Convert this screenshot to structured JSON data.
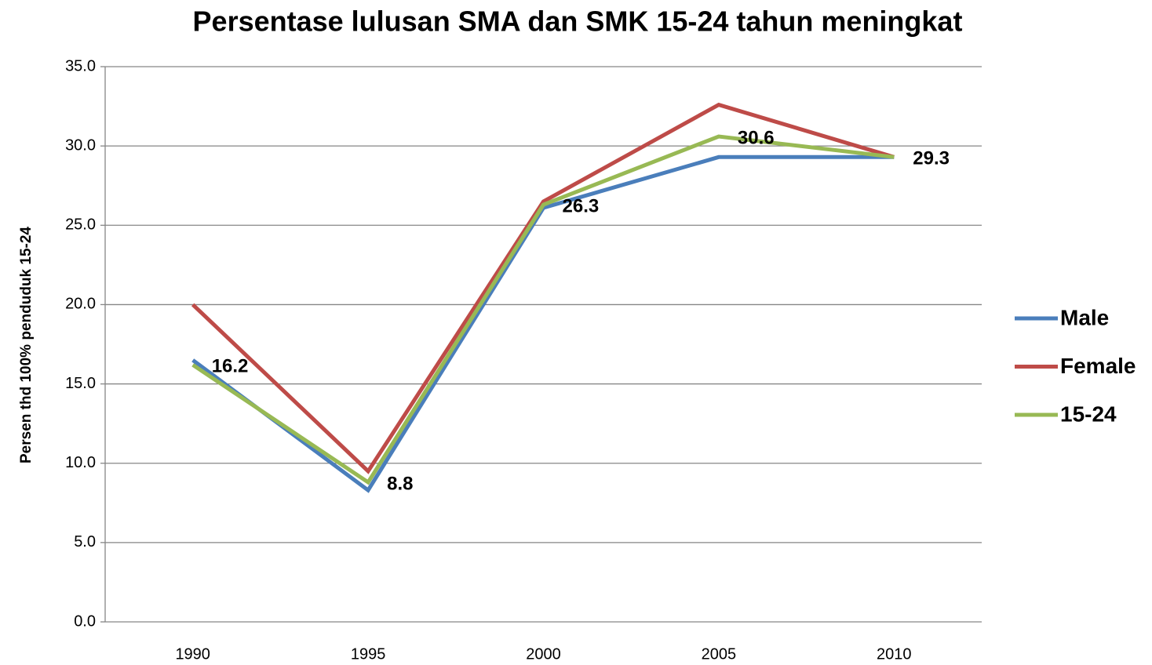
{
  "chart_data": {
    "type": "line",
    "title": "Persentase lulusan SMA dan SMK 15-24 tahun meningkat",
    "y_label": "Persen thd 100% penduduk 15-24",
    "categories": [
      "1990",
      "1995",
      "2000",
      "2005",
      "2010"
    ],
    "series": [
      {
        "name": "Male",
        "color": "#4a7ebb",
        "values": [
          16.5,
          8.3,
          26.1,
          29.3,
          29.3
        ]
      },
      {
        "name": "Female",
        "color": "#be4b48",
        "values": [
          20.0,
          9.5,
          26.5,
          32.6,
          29.3
        ]
      },
      {
        "name": "15-24",
        "color": "#98b954",
        "values": [
          16.2,
          8.8,
          26.3,
          30.6,
          29.3
        ],
        "data_labels": true
      }
    ],
    "ylim": [
      0,
      35
    ],
    "yticks": [
      {
        "value": 0,
        "label": "0.0"
      },
      {
        "value": 5,
        "label": "5.0"
      },
      {
        "value": 10,
        "label": "10.0"
      },
      {
        "value": 15,
        "label": "15.0"
      },
      {
        "value": 20,
        "label": "20.0"
      },
      {
        "value": 25,
        "label": "25.0"
      },
      {
        "value": 30,
        "label": "30.0"
      },
      {
        "value": 35,
        "label": "35.0"
      }
    ],
    "grid": true,
    "legend": "right"
  }
}
